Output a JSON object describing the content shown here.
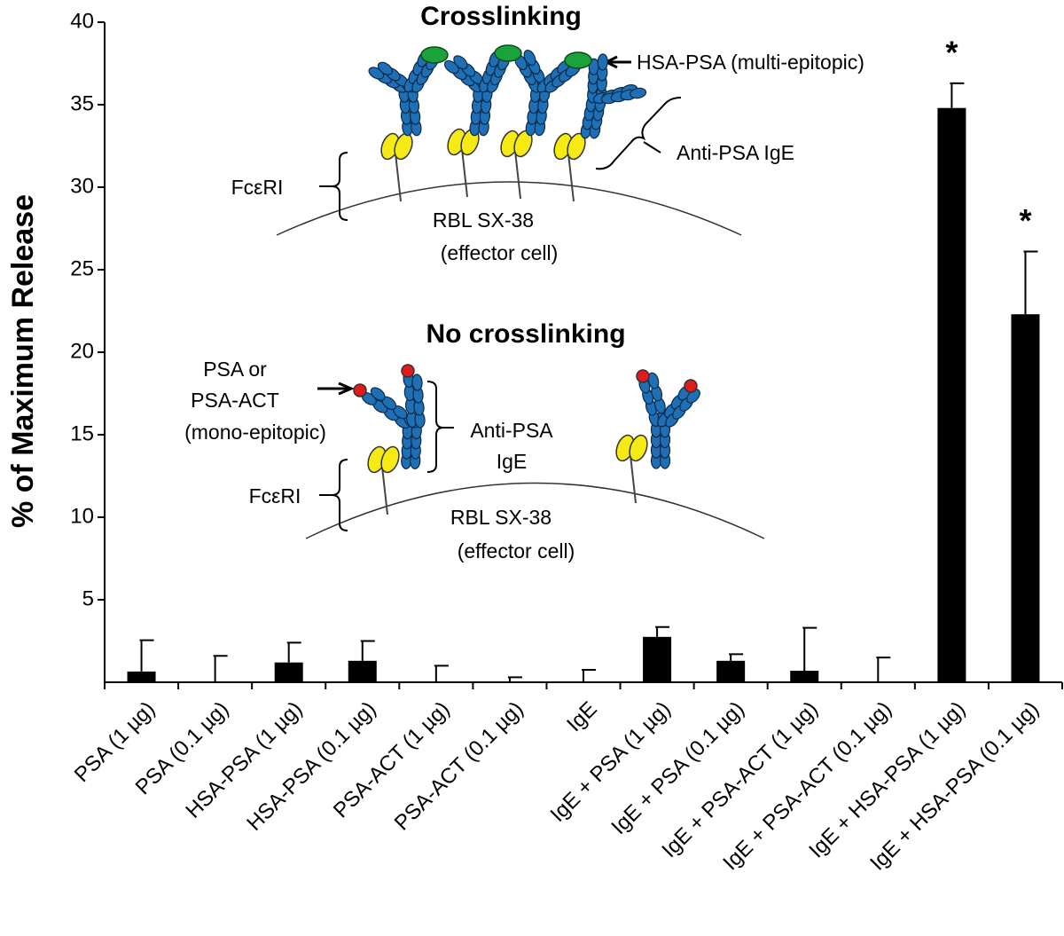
{
  "chart_data": {
    "type": "bar",
    "y_label": "% of Maximum Release",
    "categories": [
      "PSA (1 µg)",
      "PSA (0.1 µg)",
      "HSA-PSA (1 µg)",
      "HSA-PSA (0.1 µg)",
      "PSA-ACT (1 µg)",
      "PSA-ACT (0.1 µg)",
      "IgE",
      "IgE + PSA (1 µg)",
      "IgE + PSA (0.1 µg)",
      "IgE + PSA-ACT (1 µg)",
      "IgE + PSA-ACT (0.1 µg)",
      "IgE + HSA-PSA (1 µg)",
      "IgE + HSA-PSA (0.1 µg)"
    ],
    "values": [
      0.65,
      0,
      1.2,
      1.3,
      0,
      0,
      0,
      2.75,
      1.3,
      0.7,
      0,
      34.8,
      22.3
    ],
    "errors": [
      1.9,
      1.6,
      1.2,
      1.2,
      1.0,
      0.3,
      0.75,
      0.6,
      0.4,
      2.6,
      1.5,
      1.5,
      3.8
    ],
    "color": "#000000",
    "ylim": [
      0,
      40
    ],
    "yticks": [
      5,
      10,
      15,
      20,
      25,
      30,
      35,
      40
    ],
    "significance_markers": [
      {
        "category": "IgE + HSA-PSA (1 µg)",
        "text": "*"
      },
      {
        "category": "IgE + HSA-PSA (0.1 µg)",
        "text": "*"
      }
    ],
    "inset": {
      "crosslinking": {
        "title": "Crosslinking",
        "antigen": "HSA-PSA (multi-epitopic)",
        "antibody": "Anti-PSA IgE",
        "receptor": "FcεRI",
        "cell": [
          "RBL SX-38",
          "(effector cell)"
        ]
      },
      "no_crosslinking": {
        "title": "No crosslinking",
        "antigen": [
          "PSA or",
          "PSA-ACT",
          "(mono-epitopic)"
        ],
        "antibody": [
          "Anti-PSA",
          "IgE"
        ],
        "receptor": "FcεRI",
        "cell": [
          "RBL SX-38",
          "(effector cell)"
        ]
      }
    }
  }
}
